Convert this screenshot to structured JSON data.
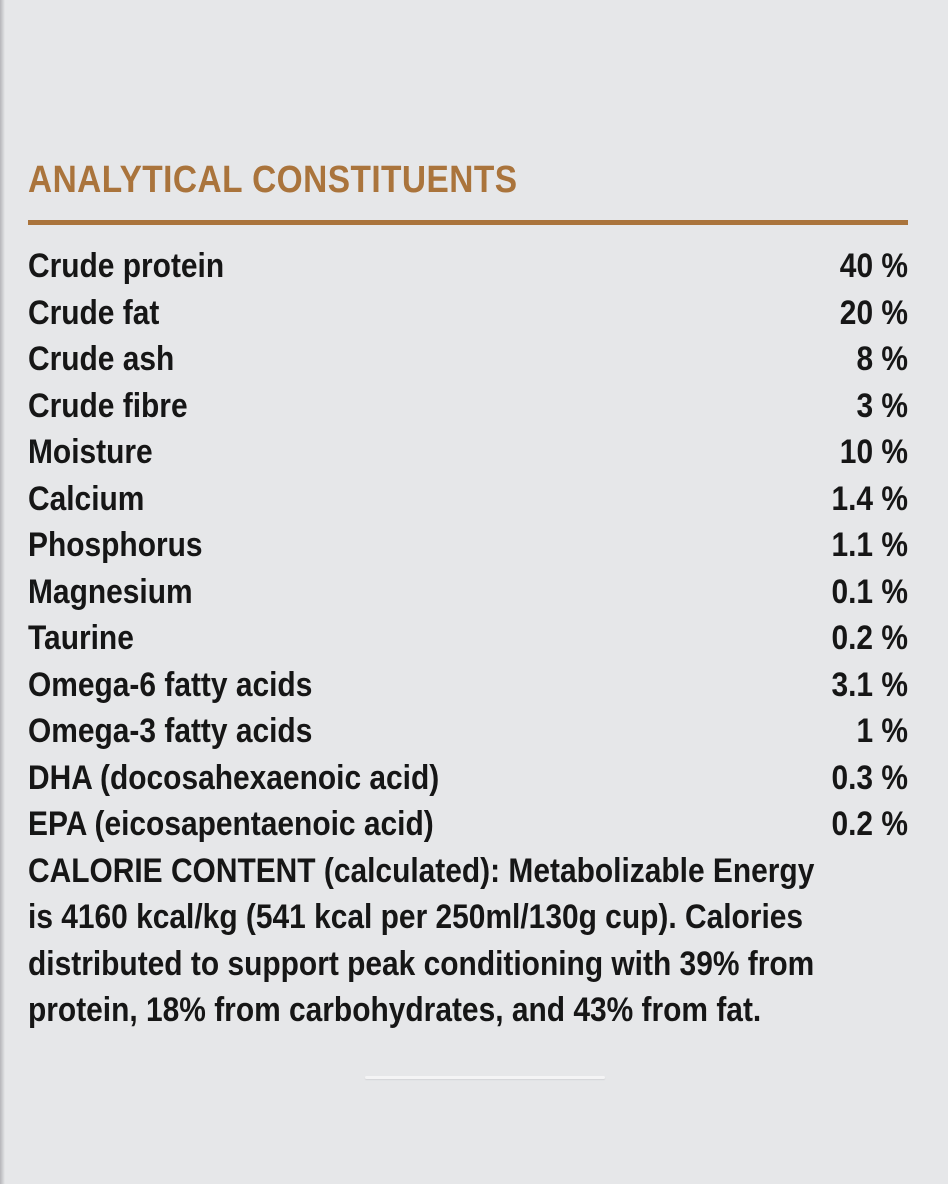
{
  "page": {
    "background_color": "#e6e7e9",
    "accent_color": "#aa743c",
    "text_color": "#161616"
  },
  "header": {
    "title": "ANALYTICAL CONSTITUENTS"
  },
  "nutrients": {
    "rows": [
      {
        "label": "Crude protein",
        "value": "40 %"
      },
      {
        "label": "Crude fat",
        "value": "20 %"
      },
      {
        "label": "Crude ash",
        "value": "8 %"
      },
      {
        "label": "Crude fibre",
        "value": "3 %"
      },
      {
        "label": "Moisture",
        "value": "10 %"
      },
      {
        "label": "Calcium",
        "value": "1.4 %"
      },
      {
        "label": "Phosphorus",
        "value": "1.1 %"
      },
      {
        "label": "Magnesium",
        "value": "0.1 %"
      },
      {
        "label": "Taurine",
        "value": "0.2 %"
      },
      {
        "label": "Omega-6 fatty acids",
        "value": "3.1 %"
      },
      {
        "label": "Omega-3 fatty acids",
        "value": "1 %"
      },
      {
        "label": "DHA (docosahexaenoic acid)",
        "value": "0.3 %"
      },
      {
        "label": "EPA (eicosapentaenoic acid)",
        "value": "0.2 %"
      }
    ]
  },
  "calorie_content": {
    "lines": [
      "CALORIE CONTENT (calculated): Metabolizable Energy",
      "is 4160 kcal/kg (541 kcal per 250ml/130g cup). Calories",
      "distributed to support peak conditioning with 39% from",
      "protein, 18% from carbohydrates, and 43% from fat."
    ]
  }
}
